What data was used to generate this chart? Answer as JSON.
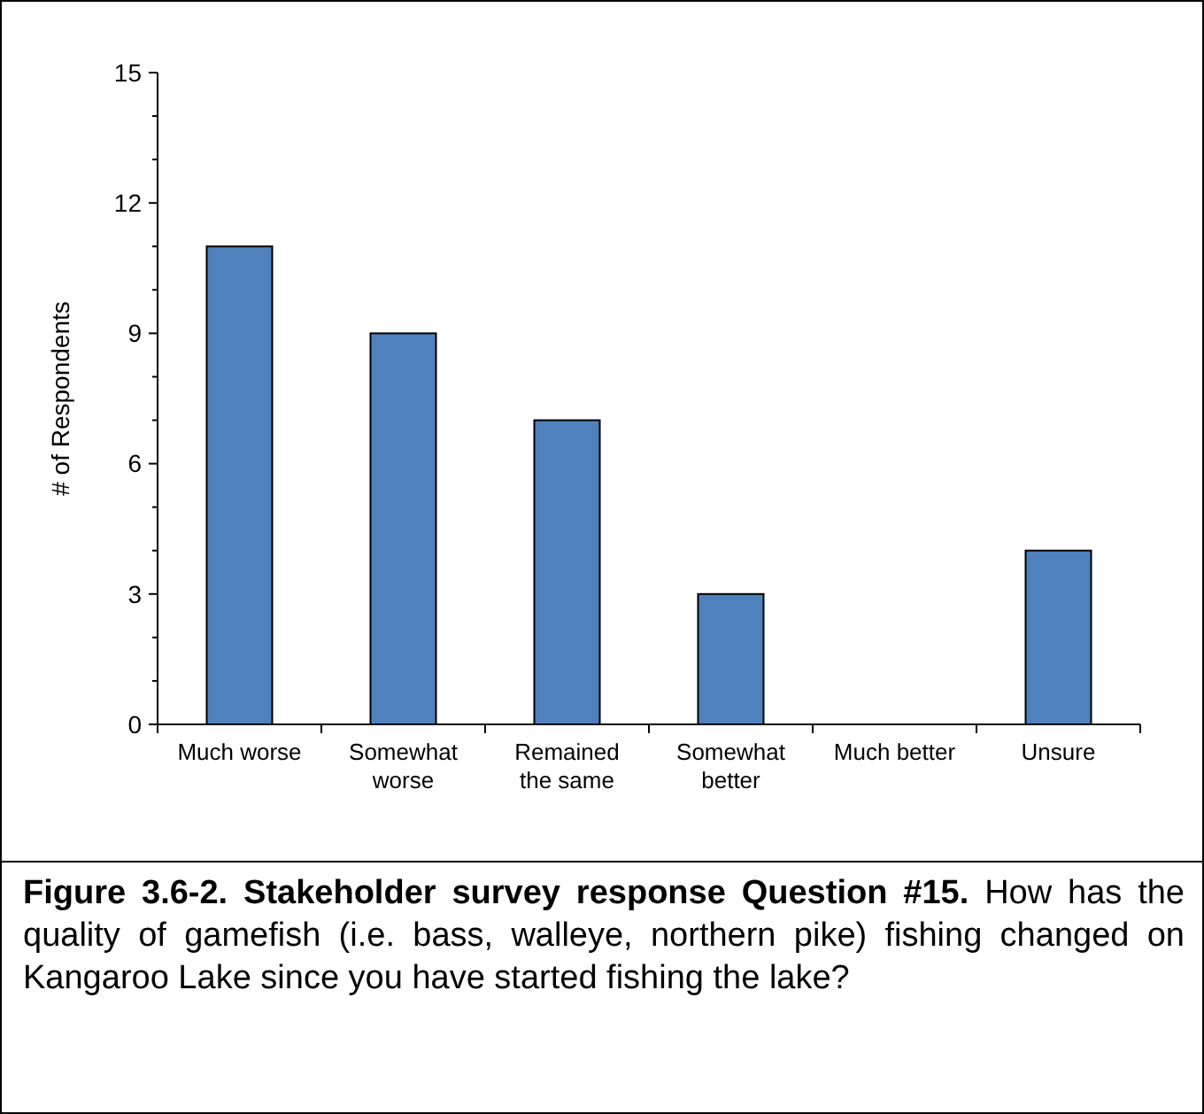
{
  "chart_data": {
    "type": "bar",
    "title": "Figure 3.6-2. Stakeholder survey response Question #15.",
    "subtitle": "How has the quality of gamefish (i.e. bass, walleye, northern pike) fishing changed on Kangaroo Lake since you have started fishing the lake?",
    "ylabel": "# of Respondents",
    "categories": [
      "Much worse",
      "Somewhat worse",
      "Remained the same",
      "Somewhat better",
      "Much better",
      "Unsure"
    ],
    "values": [
      11,
      9,
      7,
      3,
      0,
      4
    ],
    "color": "#4f81bd",
    "ylim": [
      0,
      15
    ],
    "yticks": [
      0,
      {
        "value": 1,
        "label": null
      },
      {
        "value": 2,
        "label": null
      },
      3,
      {
        "value": 4,
        "label": null
      },
      {
        "value": 5,
        "label": null
      },
      6,
      {
        "value": 7,
        "label": null
      },
      {
        "value": 8,
        "label": null
      },
      9,
      {
        "value": 10,
        "label": null
      },
      {
        "value": 11,
        "label": null
      },
      12,
      {
        "value": 13,
        "label": null
      },
      {
        "value": 14,
        "label": null
      },
      15
    ],
    "grid": false
  }
}
